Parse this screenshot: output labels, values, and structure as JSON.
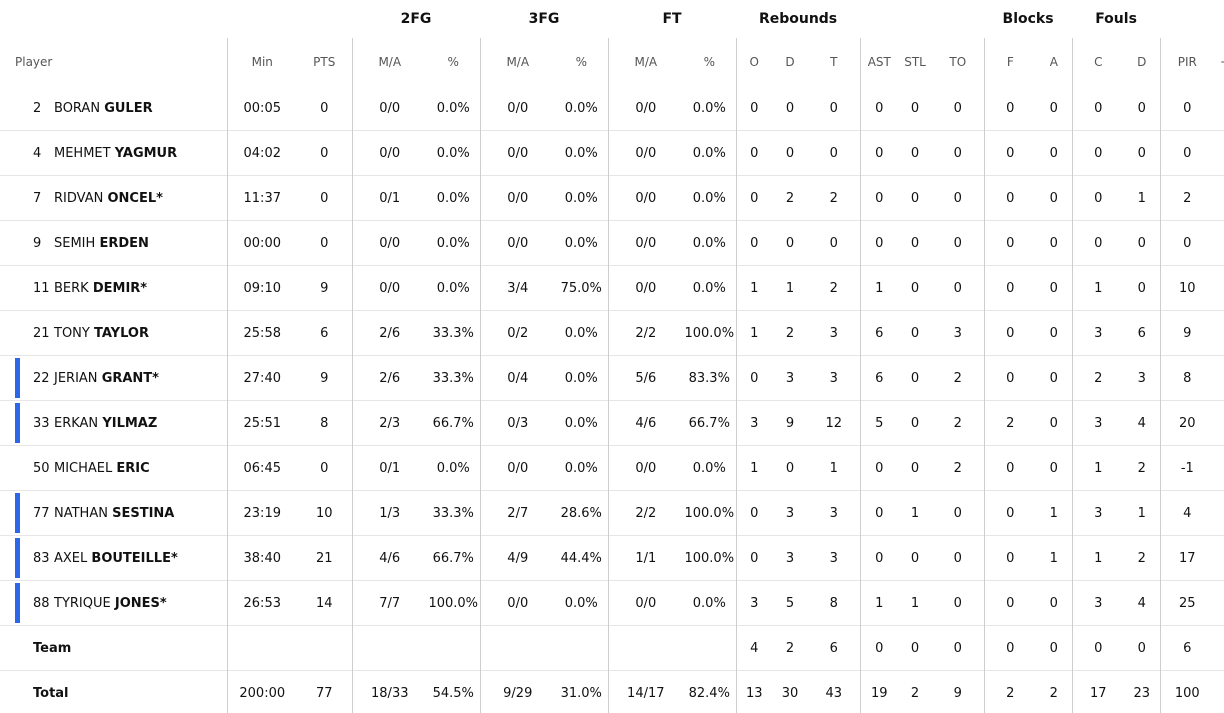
{
  "headers": {
    "groups": {
      "fg2": "2FG",
      "fg3": "3FG",
      "ft": "FT",
      "reb": "Rebounds",
      "blk": "Blocks",
      "fouls": "Fouls"
    },
    "labels": {
      "player": "Player",
      "min": "Min",
      "pts": "PTS",
      "fg2_ma": "M/A",
      "fg2_pct": "%",
      "fg3_ma": "M/A",
      "fg3_pct": "%",
      "ft_ma": "M/A",
      "ft_pct": "%",
      "o": "O",
      "d": "D",
      "t": "T",
      "ast": "AST",
      "stl": "STL",
      "to": "TO",
      "bf": "F",
      "ba": "A",
      "fc": "C",
      "fd": "D",
      "pir": "PIR",
      "pm": "+/"
    }
  },
  "colors": {
    "starter_bar": "#2b67e8",
    "divider": "#cfcfcf"
  },
  "players": [
    {
      "num": "2",
      "first": "BORAN",
      "last": "GULER",
      "starter": false,
      "min": "00:05",
      "pts": "0",
      "fg2_ma": "0/0",
      "fg2_pct": "0.0%",
      "fg3_ma": "0/0",
      "fg3_pct": "0.0%",
      "ft_ma": "0/0",
      "ft_pct": "0.0%",
      "o": "0",
      "d": "0",
      "t": "0",
      "ast": "0",
      "stl": "0",
      "to": "0",
      "bf": "0",
      "ba": "0",
      "fc": "0",
      "fd": "0",
      "pir": "0"
    },
    {
      "num": "4",
      "first": "MEHMET",
      "last": "YAGMUR",
      "starter": false,
      "min": "04:02",
      "pts": "0",
      "fg2_ma": "0/0",
      "fg2_pct": "0.0%",
      "fg3_ma": "0/0",
      "fg3_pct": "0.0%",
      "ft_ma": "0/0",
      "ft_pct": "0.0%",
      "o": "0",
      "d": "0",
      "t": "0",
      "ast": "0",
      "stl": "0",
      "to": "0",
      "bf": "0",
      "ba": "0",
      "fc": "0",
      "fd": "0",
      "pir": "0"
    },
    {
      "num": "7",
      "first": "RIDVAN",
      "last": "ONCEL*",
      "starter": false,
      "min": "11:37",
      "pts": "0",
      "fg2_ma": "0/1",
      "fg2_pct": "0.0%",
      "fg3_ma": "0/0",
      "fg3_pct": "0.0%",
      "ft_ma": "0/0",
      "ft_pct": "0.0%",
      "o": "0",
      "d": "2",
      "t": "2",
      "ast": "0",
      "stl": "0",
      "to": "0",
      "bf": "0",
      "ba": "0",
      "fc": "0",
      "fd": "1",
      "pir": "2"
    },
    {
      "num": "9",
      "first": "SEMIH",
      "last": "ERDEN",
      "starter": false,
      "min": "00:00",
      "pts": "0",
      "fg2_ma": "0/0",
      "fg2_pct": "0.0%",
      "fg3_ma": "0/0",
      "fg3_pct": "0.0%",
      "ft_ma": "0/0",
      "ft_pct": "0.0%",
      "o": "0",
      "d": "0",
      "t": "0",
      "ast": "0",
      "stl": "0",
      "to": "0",
      "bf": "0",
      "ba": "0",
      "fc": "0",
      "fd": "0",
      "pir": "0"
    },
    {
      "num": "11",
      "first": "BERK",
      "last": "DEMIR*",
      "starter": false,
      "min": "09:10",
      "pts": "9",
      "fg2_ma": "0/0",
      "fg2_pct": "0.0%",
      "fg3_ma": "3/4",
      "fg3_pct": "75.0%",
      "ft_ma": "0/0",
      "ft_pct": "0.0%",
      "o": "1",
      "d": "1",
      "t": "2",
      "ast": "1",
      "stl": "0",
      "to": "0",
      "bf": "0",
      "ba": "0",
      "fc": "1",
      "fd": "0",
      "pir": "10"
    },
    {
      "num": "21",
      "first": "TONY",
      "last": "TAYLOR",
      "starter": false,
      "min": "25:58",
      "pts": "6",
      "fg2_ma": "2/6",
      "fg2_pct": "33.3%",
      "fg3_ma": "0/2",
      "fg3_pct": "0.0%",
      "ft_ma": "2/2",
      "ft_pct": "100.0%",
      "o": "1",
      "d": "2",
      "t": "3",
      "ast": "6",
      "stl": "0",
      "to": "3",
      "bf": "0",
      "ba": "0",
      "fc": "3",
      "fd": "6",
      "pir": "9"
    },
    {
      "num": "22",
      "first": "JERIAN",
      "last": "GRANT*",
      "starter": true,
      "min": "27:40",
      "pts": "9",
      "fg2_ma": "2/6",
      "fg2_pct": "33.3%",
      "fg3_ma": "0/4",
      "fg3_pct": "0.0%",
      "ft_ma": "5/6",
      "ft_pct": "83.3%",
      "o": "0",
      "d": "3",
      "t": "3",
      "ast": "6",
      "stl": "0",
      "to": "2",
      "bf": "0",
      "ba": "0",
      "fc": "2",
      "fd": "3",
      "pir": "8"
    },
    {
      "num": "33",
      "first": "ERKAN",
      "last": "YILMAZ",
      "starter": true,
      "min": "25:51",
      "pts": "8",
      "fg2_ma": "2/3",
      "fg2_pct": "66.7%",
      "fg3_ma": "0/3",
      "fg3_pct": "0.0%",
      "ft_ma": "4/6",
      "ft_pct": "66.7%",
      "o": "3",
      "d": "9",
      "t": "12",
      "ast": "5",
      "stl": "0",
      "to": "2",
      "bf": "2",
      "ba": "0",
      "fc": "3",
      "fd": "4",
      "pir": "20"
    },
    {
      "num": "50",
      "first": "MICHAEL",
      "last": "ERIC",
      "starter": false,
      "min": "06:45",
      "pts": "0",
      "fg2_ma": "0/1",
      "fg2_pct": "0.0%",
      "fg3_ma": "0/0",
      "fg3_pct": "0.0%",
      "ft_ma": "0/0",
      "ft_pct": "0.0%",
      "o": "1",
      "d": "0",
      "t": "1",
      "ast": "0",
      "stl": "0",
      "to": "2",
      "bf": "0",
      "ba": "0",
      "fc": "1",
      "fd": "2",
      "pir": "-1"
    },
    {
      "num": "77",
      "first": "NATHAN",
      "last": "SESTINA",
      "starter": true,
      "min": "23:19",
      "pts": "10",
      "fg2_ma": "1/3",
      "fg2_pct": "33.3%",
      "fg3_ma": "2/7",
      "fg3_pct": "28.6%",
      "ft_ma": "2/2",
      "ft_pct": "100.0%",
      "o": "0",
      "d": "3",
      "t": "3",
      "ast": "0",
      "stl": "1",
      "to": "0",
      "bf": "0",
      "ba": "1",
      "fc": "3",
      "fd": "1",
      "pir": "4"
    },
    {
      "num": "83",
      "first": "AXEL",
      "last": "BOUTEILLE*",
      "starter": true,
      "min": "38:40",
      "pts": "21",
      "fg2_ma": "4/6",
      "fg2_pct": "66.7%",
      "fg3_ma": "4/9",
      "fg3_pct": "44.4%",
      "ft_ma": "1/1",
      "ft_pct": "100.0%",
      "o": "0",
      "d": "3",
      "t": "3",
      "ast": "0",
      "stl": "0",
      "to": "0",
      "bf": "0",
      "ba": "1",
      "fc": "1",
      "fd": "2",
      "pir": "17"
    },
    {
      "num": "88",
      "first": "TYRIQUE",
      "last": "JONES*",
      "starter": true,
      "min": "26:53",
      "pts": "14",
      "fg2_ma": "7/7",
      "fg2_pct": "100.0%",
      "fg3_ma": "0/0",
      "fg3_pct": "0.0%",
      "ft_ma": "0/0",
      "ft_pct": "0.0%",
      "o": "3",
      "d": "5",
      "t": "8",
      "ast": "1",
      "stl": "1",
      "to": "0",
      "bf": "0",
      "ba": "0",
      "fc": "3",
      "fd": "4",
      "pir": "25"
    }
  ],
  "team": {
    "label": "Team",
    "o": "4",
    "d": "2",
    "t": "6",
    "ast": "0",
    "stl": "0",
    "to": "0",
    "bf": "0",
    "ba": "0",
    "fc": "0",
    "fd": "0",
    "pir": "6"
  },
  "total": {
    "label": "Total",
    "min": "200:00",
    "pts": "77",
    "fg2_ma": "18/33",
    "fg2_pct": "54.5%",
    "fg3_ma": "9/29",
    "fg3_pct": "31.0%",
    "ft_ma": "14/17",
    "ft_pct": "82.4%",
    "o": "13",
    "d": "30",
    "t": "43",
    "ast": "19",
    "stl": "2",
    "to": "9",
    "bf": "2",
    "ba": "2",
    "fc": "17",
    "fd": "23",
    "pir": "100"
  }
}
